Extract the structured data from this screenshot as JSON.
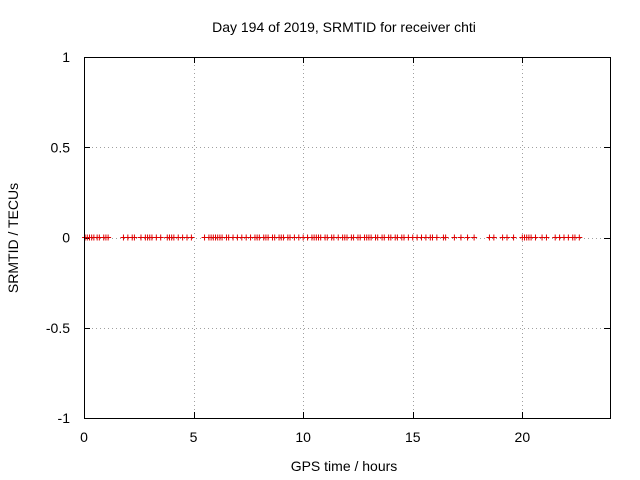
{
  "chart_data": {
    "type": "scatter",
    "title": "Day 194 of 2019, SRMTID for receiver chti",
    "xlabel": "GPS time / hours",
    "ylabel": "SRMTID / TECUs",
    "xlim": [
      0,
      24
    ],
    "ylim": [
      -1,
      1
    ],
    "xticks": [
      0,
      5,
      10,
      15,
      20
    ],
    "xtick_labels": [
      "0",
      "5",
      "10",
      "15",
      "20"
    ],
    "yticks": [
      -1,
      -0.5,
      0,
      0.5,
      1
    ],
    "ytick_labels": [
      "-1",
      "-0.5",
      "0",
      "0.5",
      "1"
    ],
    "grid": true,
    "marker": "+",
    "color": "#e00000",
    "series": [
      {
        "name": "SRMTID",
        "x": [
          0.05,
          0.15,
          0.25,
          0.35,
          0.45,
          0.6,
          0.7,
          0.9,
          1.0,
          1.1,
          1.8,
          2.0,
          2.2,
          2.3,
          2.6,
          2.8,
          2.9,
          3.0,
          3.1,
          3.3,
          3.5,
          3.8,
          3.9,
          4.0,
          4.1,
          4.3,
          4.5,
          4.7,
          4.9,
          5.5,
          5.7,
          5.8,
          5.9,
          6.0,
          6.1,
          6.2,
          6.3,
          6.5,
          6.6,
          6.8,
          7.0,
          7.2,
          7.4,
          7.6,
          7.8,
          7.9,
          8.0,
          8.2,
          8.3,
          8.4,
          8.6,
          8.7,
          8.9,
          9.0,
          9.1,
          9.3,
          9.4,
          9.6,
          9.8,
          10.0,
          10.2,
          10.4,
          10.5,
          10.6,
          10.7,
          10.8,
          11.0,
          11.1,
          11.3,
          11.4,
          11.6,
          11.8,
          11.9,
          12.0,
          12.2,
          12.3,
          12.5,
          12.6,
          12.8,
          12.9,
          13.0,
          13.1,
          13.3,
          13.4,
          13.6,
          13.7,
          13.9,
          14.0,
          14.2,
          14.3,
          14.5,
          14.6,
          14.8,
          15.0,
          15.2,
          15.4,
          15.6,
          15.8,
          15.9,
          16.1,
          16.4,
          16.5,
          16.9,
          17.2,
          17.5,
          17.8,
          18.5,
          18.7,
          19.1,
          19.3,
          19.6,
          20.0,
          20.1,
          20.2,
          20.3,
          20.4,
          20.6,
          20.9,
          21.1,
          21.5,
          21.7,
          21.9,
          22.1,
          22.3,
          22.4,
          22.6
        ],
        "y": 0
      }
    ]
  }
}
